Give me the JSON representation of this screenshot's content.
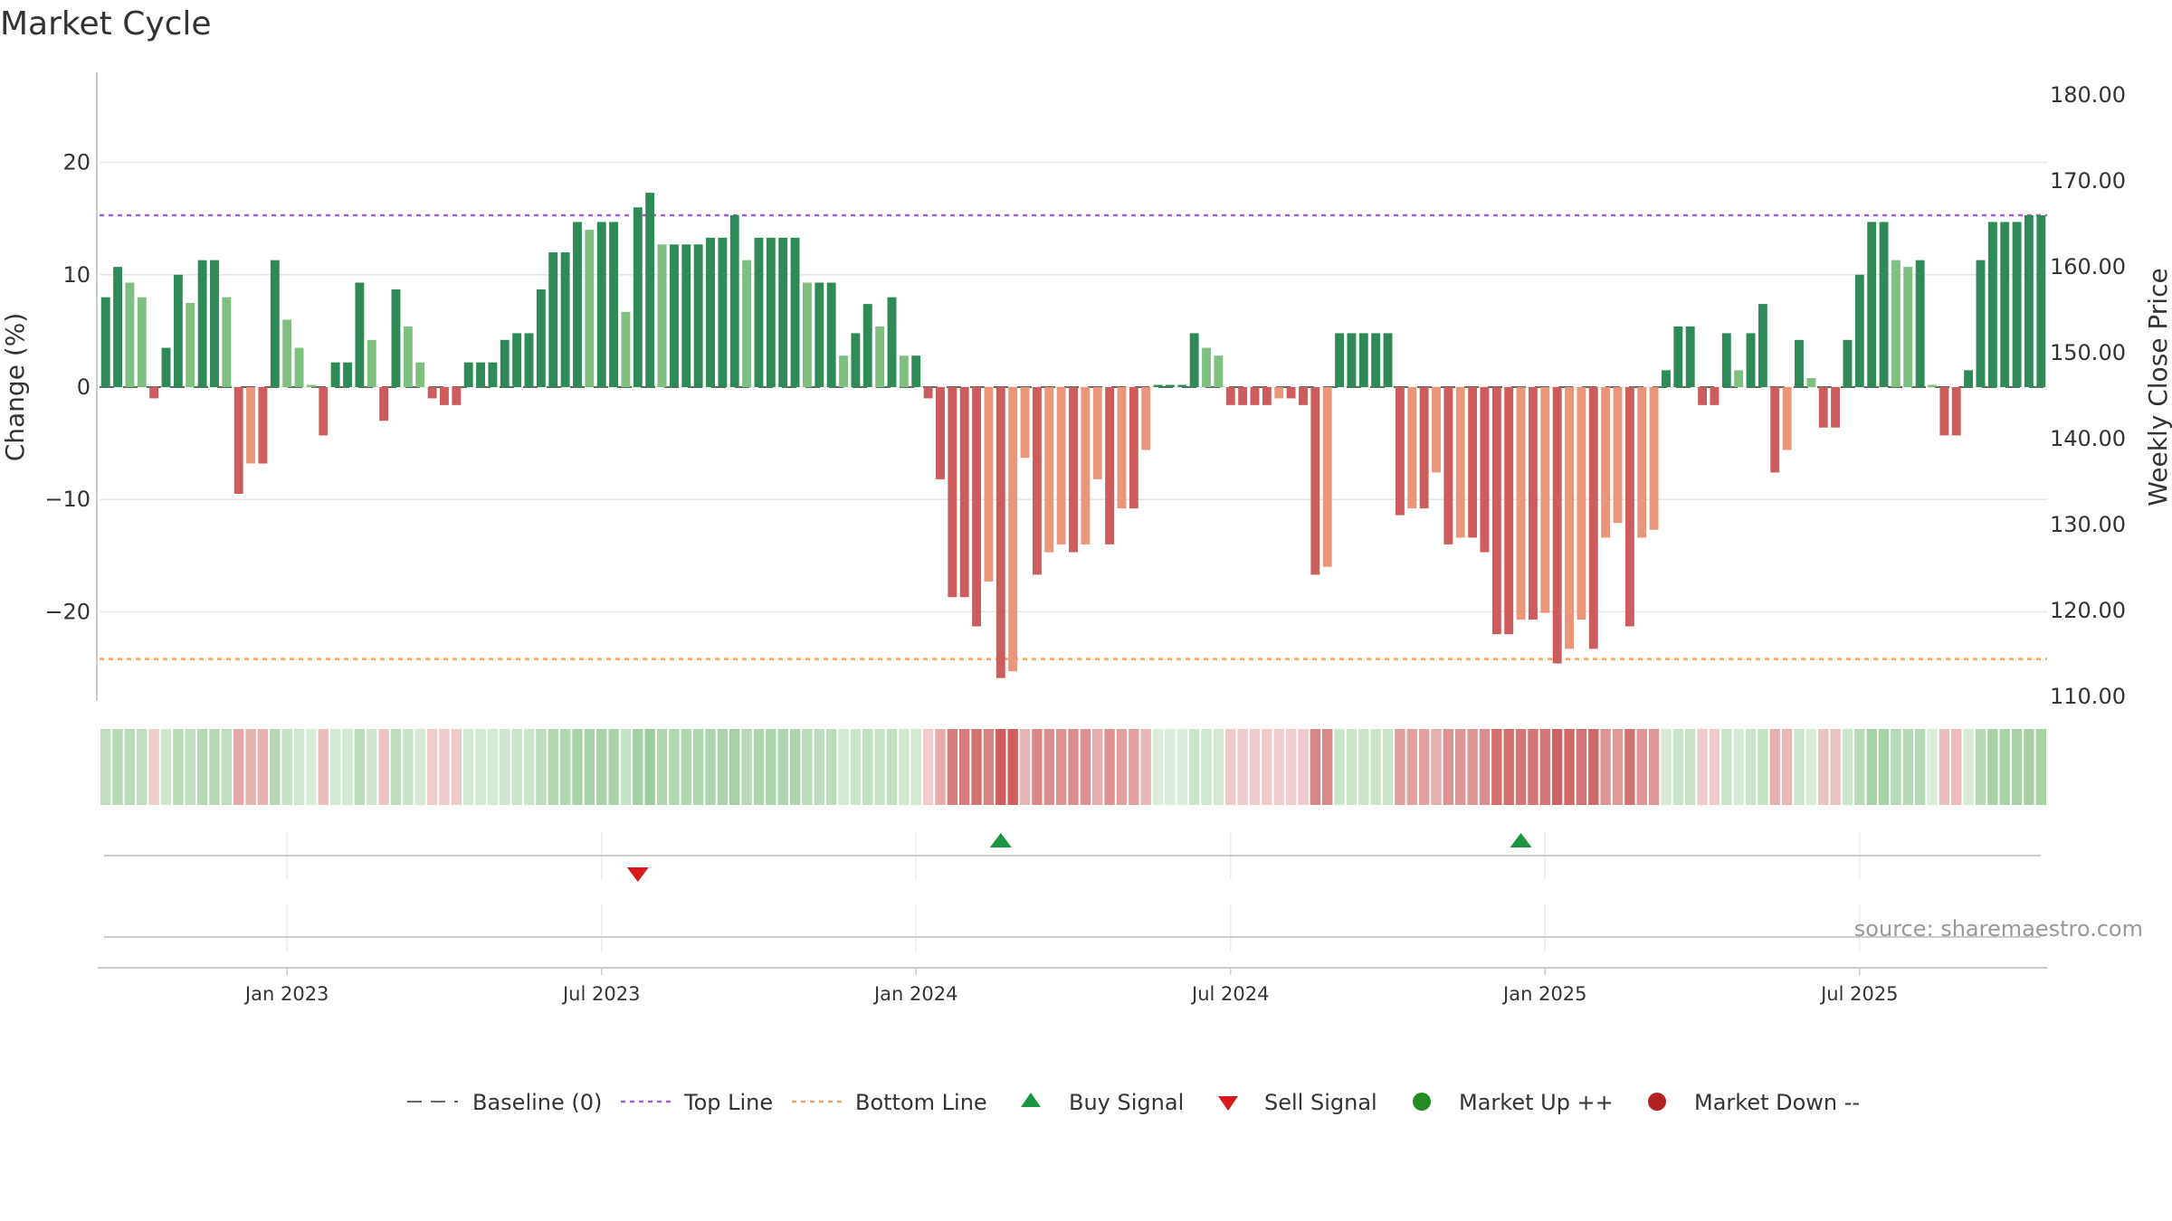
{
  "title": "Market Cycle",
  "source": "source: sharemaestro.com",
  "colors": {
    "up_strong": "#2e8b57",
    "up_weak": "#7fbf7f",
    "down_strong": "#cd5c5c",
    "down_weak": "#e9967a",
    "top_line": "#9966cc",
    "bottom_line": "#f4a460",
    "buy": "#1a9641",
    "sell": "#d7191c",
    "market_up": "#228b22",
    "market_down": "#b22222"
  },
  "chart_data": {
    "type": "bar",
    "title": "Market Cycle",
    "ylabel": "Change (%)",
    "ylabel_right": "Weekly Close Price",
    "ylim": [
      -28,
      28
    ],
    "y_ticks": [
      {
        "value": 20,
        "label": "20"
      },
      {
        "value": 10,
        "label": "10"
      },
      {
        "value": 0,
        "label": "0"
      },
      {
        "value": -10,
        "label": "−10"
      },
      {
        "value": -20,
        "label": "−20"
      }
    ],
    "y2lim": [
      110,
      180
    ],
    "y2_ticks": [
      {
        "value": 180,
        "label": "180.00"
      },
      {
        "value": 170,
        "label": "170.00"
      },
      {
        "value": 160,
        "label": "160.00"
      },
      {
        "value": 150,
        "label": "150.00"
      },
      {
        "value": 140,
        "label": "140.00"
      },
      {
        "value": 130,
        "label": "130.00"
      },
      {
        "value": 120,
        "label": "120.00"
      },
      {
        "value": 110,
        "label": "110.00"
      }
    ],
    "top_line": 15.3,
    "bottom_line": -24.2,
    "x_ticks": [
      {
        "index": 15,
        "label": "Jan 2023"
      },
      {
        "index": 41,
        "label": "Jul 2023"
      },
      {
        "index": 67,
        "label": "Jan 2024"
      },
      {
        "index": 93,
        "label": "Jul 2024"
      },
      {
        "index": 119,
        "label": "Jan 2025"
      },
      {
        "index": 145,
        "label": "Jul 2025"
      }
    ],
    "weekly_change": [
      8,
      10.7,
      9.3,
      8,
      -1,
      3.5,
      10,
      7.5,
      11.3,
      11.3,
      8,
      -9.5,
      -6.8,
      -6.8,
      11.3,
      6,
      3.5,
      0.2,
      -4.3,
      2.2,
      2.2,
      9.3,
      4.2,
      -3,
      8.7,
      5.4,
      2.2,
      -1,
      -1.6,
      -1.6,
      2.2,
      2.2,
      2.2,
      4.2,
      4.8,
      4.8,
      8.7,
      12,
      12,
      14.7,
      14,
      14.7,
      14.7,
      6.7,
      16,
      17.3,
      12.7,
      12.7,
      12.7,
      12.7,
      13.3,
      13.3,
      15.3,
      11.3,
      13.3,
      13.3,
      13.3,
      13.3,
      9.3,
      9.3,
      9.3,
      2.8,
      4.8,
      7.4,
      5.4,
      8,
      2.8,
      2.8,
      -1,
      -8.2,
      -18.7,
      -18.7,
      -21.3,
      -17.3,
      -25.9,
      -25.3,
      -6.3,
      -16.7,
      -14.7,
      -14,
      -14.7,
      -14,
      -8.2,
      -14,
      -10.8,
      -10.8,
      -5.6,
      0.2,
      0.2,
      0.2,
      4.8,
      3.5,
      2.8,
      -1.6,
      -1.6,
      -1.6,
      -1.6,
      -1,
      -1,
      -1.6,
      -16.7,
      -16,
      4.8,
      4.8,
      4.8,
      4.8,
      4.8,
      -11.4,
      -10.8,
      -10.8,
      -7.6,
      -14,
      -13.4,
      -13.4,
      -14.7,
      -22,
      -22,
      -20.7,
      -20.7,
      -20.1,
      -24.6,
      -23.3,
      -20.7,
      -23.3,
      -13.4,
      -12.1,
      -21.3,
      -13.4,
      -12.7,
      1.5,
      5.4,
      5.4,
      -1.6,
      -1.6,
      4.8,
      1.5,
      4.8,
      7.4,
      -7.6,
      -5.6,
      4.2,
      0.8,
      -3.6,
      -3.6,
      4.2,
      10,
      14.7,
      14.7,
      11.3,
      10.7,
      11.3,
      0.2,
      -4.3,
      -4.3,
      1.5,
      11.3,
      14.7,
      14.7,
      14.7,
      15.3,
      15.3
    ],
    "signals": [
      {
        "type": "sell",
        "index": 44
      },
      {
        "type": "buy",
        "index": 74
      },
      {
        "type": "buy",
        "index": 117
      }
    ]
  },
  "legend": [
    {
      "label": "Baseline (0)",
      "key": "baseline"
    },
    {
      "label": "Top Line",
      "key": "top"
    },
    {
      "label": "Bottom Line",
      "key": "bottom"
    },
    {
      "label": "Buy Signal",
      "key": "buy"
    },
    {
      "label": "Sell Signal",
      "key": "sell"
    },
    {
      "label": "Market Up ++",
      "key": "up"
    },
    {
      "label": "Market Down --",
      "key": "down"
    }
  ]
}
